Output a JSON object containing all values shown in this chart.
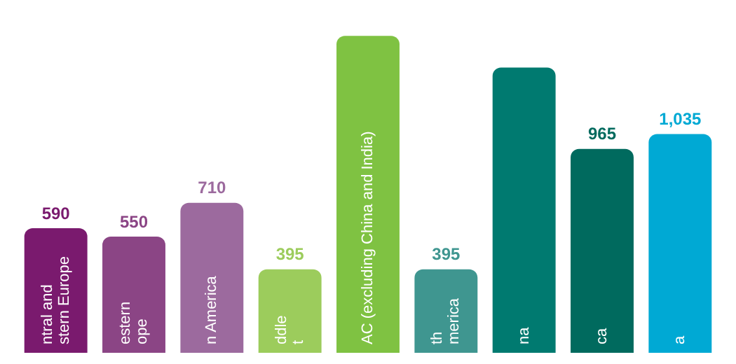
{
  "chart_data": {
    "type": "bar",
    "categories": [
      "ntral and\nstern Europe",
      "estern\nope",
      "n America",
      "ddle\nt",
      "AC (excluding China and India)",
      "th\nmerica",
      "na",
      "ca",
      "a"
    ],
    "values": [
      590,
      550,
      710,
      395,
      1500,
      395,
      1350,
      965,
      1035
    ],
    "value_labels": [
      "590",
      "550",
      "710",
      "395",
      null,
      "395",
      null,
      "965",
      "1,035"
    ],
    "colors": [
      "#7a1a6e",
      "#8b4585",
      "#9c6a9e",
      "#9ccc5c",
      "#7fc242",
      "#3f9690",
      "#007a70",
      "#006a5e",
      "#00a9d4"
    ]
  }
}
